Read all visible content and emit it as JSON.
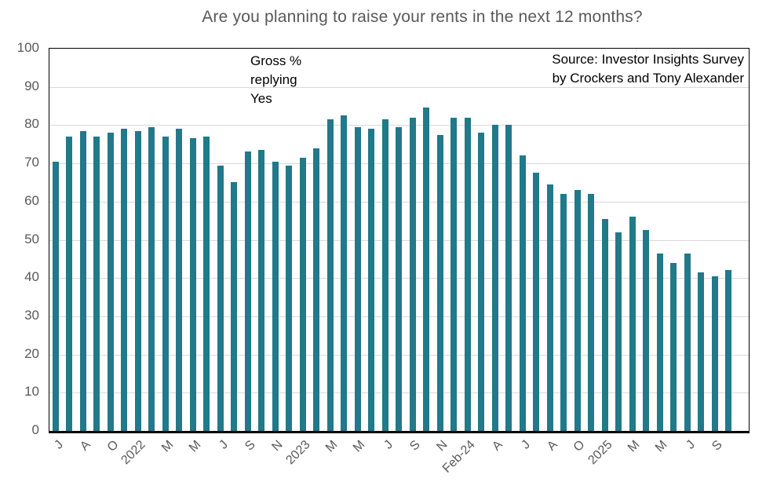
{
  "title": "Are you planning to raise your rents in the next 12 months?",
  "annotation": {
    "line1": "Gross %",
    "line2": "replying",
    "line3": "Yes"
  },
  "source": {
    "line1": "Source: Investor Insights Survey",
    "line2": "by Crockers and Tony Alexander"
  },
  "colors": {
    "bar": "#21798A",
    "gridline": "#d9d9d9",
    "axis_text": "#595959",
    "title_text": "#595959",
    "frame": "#000000"
  },
  "chart_data": {
    "type": "bar",
    "title": "Are you planning to raise your rents in the next 12 months?",
    "xlabel": "",
    "ylabel": "",
    "ylim": [
      0,
      100
    ],
    "yticks": [
      100,
      90,
      80,
      70,
      60,
      50,
      40,
      30,
      20,
      10,
      0
    ],
    "grid": "horizontal",
    "legend": "none",
    "categories": [
      "J",
      "",
      "A",
      "",
      "O",
      "",
      "2022",
      "",
      "M",
      "",
      "M",
      "",
      "J",
      "",
      "S",
      "",
      "N",
      "",
      "2023",
      "",
      "M",
      "",
      "M",
      "",
      "J",
      "",
      "S",
      "",
      "N",
      "",
      "Feb-24",
      "",
      "A",
      "",
      "J",
      "",
      "A",
      "",
      "O",
      "",
      "2025",
      "",
      "M",
      "",
      "M",
      "",
      "J",
      "",
      "S",
      ""
    ],
    "values": [
      70.5,
      77,
      78.5,
      77,
      78,
      79,
      78.5,
      79.5,
      77,
      79,
      76.5,
      77,
      69.5,
      65,
      73,
      73.5,
      70.5,
      69.5,
      71.5,
      74,
      81.5,
      82.5,
      79.5,
      79,
      81.5,
      79.5,
      82,
      84.5,
      77.5,
      82,
      82,
      78,
      80,
      80,
      72,
      67.5,
      64.5,
      62,
      63,
      62,
      55.5,
      52,
      56,
      52.5,
      46.5,
      44,
      46.5,
      41.5,
      40.5,
      42
    ]
  }
}
